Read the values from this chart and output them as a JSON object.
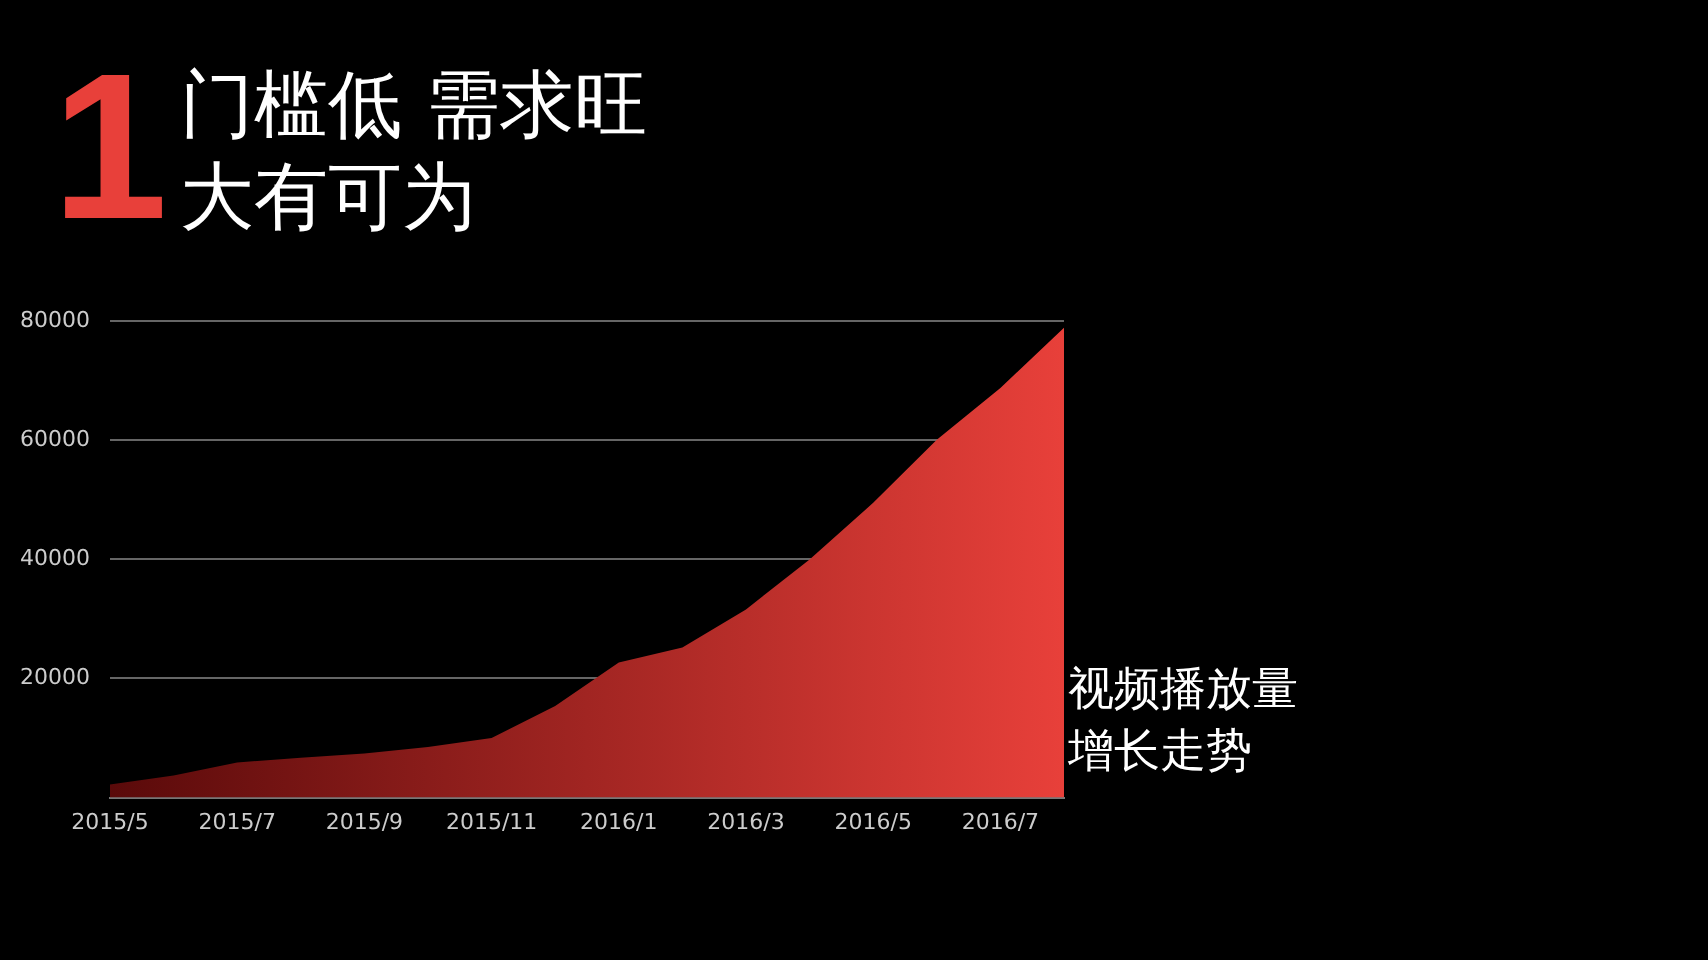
{
  "chart_data": {
    "type": "area",
    "title": "门槛低 需求旺大有可为",
    "annotations": [
      "1",
      "视频播放量增长走势"
    ],
    "categories": [
      "2015/5",
      null,
      "2015/7",
      null,
      "2015/9",
      null,
      "2015/11",
      null,
      "2016/1",
      null,
      "2016/3",
      null,
      "2016/5",
      null,
      "2016/7",
      null
    ],
    "series": [
      {
        "color": "#e8403a",
        "values": [
          2200,
          3700,
          5900,
          6700,
          7400,
          8500,
          10000,
          15400,
          22700,
          25200,
          31600,
          40000,
          49500,
          60100,
          68800,
          78900
        ]
      }
    ],
    "ylim": [
      0,
      80000
    ],
    "yticks": [
      {
        "value": 0,
        "label": null
      },
      20000,
      40000,
      60000,
      80000
    ],
    "grid": "y"
  }
}
